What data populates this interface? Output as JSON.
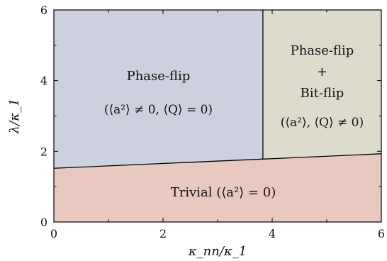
{
  "chart_data": {
    "type": "area",
    "xlabel": "κ_nn/κ_1",
    "ylabel": "λ/κ_1",
    "xlim": [
      0,
      6
    ],
    "ylim": [
      0,
      6
    ],
    "xticks": [
      0,
      2,
      4,
      6
    ],
    "yticks": [
      0,
      2,
      4,
      6
    ],
    "boundaries": {
      "lower_line": {
        "x": [
          0,
          3.83,
          6
        ],
        "y": [
          1.52,
          1.78,
          1.93
        ]
      },
      "vertical_line": {
        "x": [
          3.83,
          3.83
        ],
        "y": [
          1.78,
          6
        ]
      }
    },
    "regions": [
      {
        "name": "Phase-flip",
        "condition": "(⟨a²⟩ ≠ 0,  ⟨Q⟩ = 0)",
        "color": "#cdd0df"
      },
      {
        "name": "Phase-flip + Bit-flip",
        "name_lines": [
          "Phase-flip",
          "+",
          "Bit-flip"
        ],
        "condition": "(⟨a²⟩, ⟨Q⟩ ≠ 0)",
        "color": "#dcdbcc"
      },
      {
        "name": "Trivial",
        "condition": "(⟨a²⟩ = 0)",
        "color": "#e9c8bf"
      }
    ]
  }
}
